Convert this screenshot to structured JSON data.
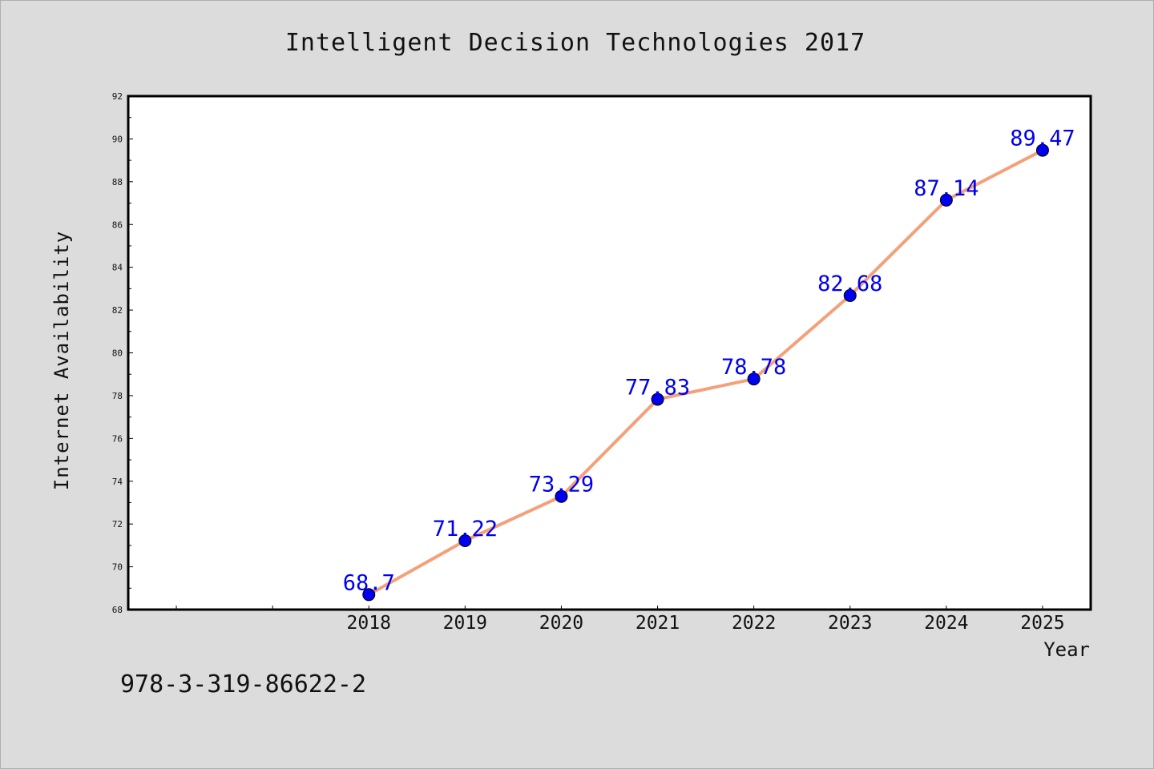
{
  "chart_data": {
    "type": "line",
    "title": "Intelligent Decision Technologies 2017",
    "xlabel": "Year",
    "ylabel": "Internet Availability",
    "x": [
      "2018",
      "2019",
      "2020",
      "2021",
      "2022",
      "2023",
      "2024",
      "2025"
    ],
    "series": [
      {
        "values": [
          68.7,
          71.22,
          73.29,
          77.83,
          78.78,
          82.68,
          87.14,
          89.47
        ],
        "data_labels": [
          "68.7",
          "71.22",
          "73.29",
          "77.83",
          "78.78",
          "82.68",
          "87.14",
          "89.47"
        ],
        "line_color": "#f4a07a",
        "marker_color": "#0000ee"
      }
    ],
    "x_positions": [
      0,
      1,
      2,
      3,
      4,
      5,
      6,
      7,
      8,
      9
    ],
    "x_label_offset": 2,
    "xlim": [
      -0.5,
      9.5
    ],
    "ylim": [
      68,
      92
    ],
    "yticks": [
      68,
      70,
      72,
      74,
      76,
      78,
      80,
      82,
      84,
      86,
      88,
      90,
      92
    ],
    "grid": false,
    "legend": "none"
  },
  "footer_text": "978-3-319-86622-2",
  "colors": {
    "background": "#dcdcdc",
    "plot_background": "#ffffff",
    "axis": "#000000",
    "data_label": "#0000ee"
  }
}
